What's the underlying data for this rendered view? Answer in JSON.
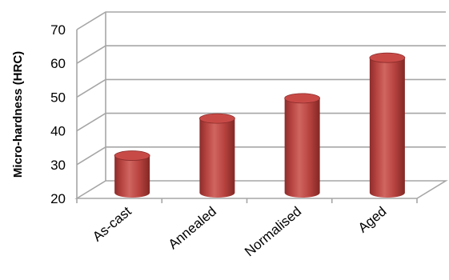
{
  "chart_data": {
    "type": "bar",
    "categories": [
      "As-cast",
      "Annealed",
      "Normalised",
      "Aged"
    ],
    "values": [
      31,
      42,
      48,
      60
    ],
    "ylabel": "Micro-hardness  (HRC)",
    "ylim": [
      20,
      70
    ],
    "yticks": [
      20,
      30,
      40,
      50,
      60,
      70
    ],
    "grid": true,
    "style": "3d-cylinder",
    "colors": {
      "bar": "#c0504d",
      "bar_dark": "#8b2d2b",
      "bar_top": "#c84a47",
      "grid": "#a6a6a6"
    }
  }
}
